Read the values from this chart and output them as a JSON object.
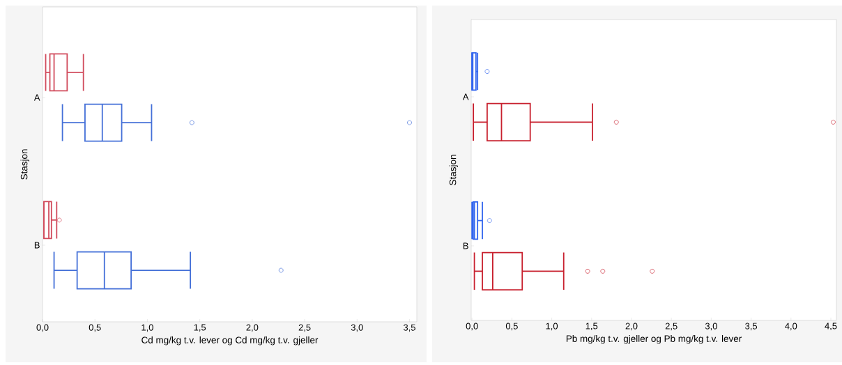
{
  "chart_data": [
    {
      "type": "box",
      "orientation": "horizontal",
      "xlabel": "Cd mg/kg t.v. lever og Cd mg/kg t.v. gjeller",
      "ylabel": "Stasjon",
      "categories": [
        "A",
        "B"
      ],
      "xlim": [
        0,
        3.57
      ],
      "xticks": [
        {
          "value": 0,
          "label": "0,0"
        },
        {
          "value": 0.5,
          "label": "0,5"
        },
        {
          "value": 1,
          "label": "1,0"
        },
        {
          "value": 1.5,
          "label": "1,5"
        },
        {
          "value": 2,
          "label": "2,0"
        },
        {
          "value": 2.5,
          "label": "2,5"
        },
        {
          "value": 3,
          "label": "3,0"
        },
        {
          "value": 3.5,
          "label": "3,5"
        }
      ],
      "series": [
        {
          "color": "#d14b5c",
          "boxes": [
            {
              "low": 0.03,
              "q1": 0.07,
              "median": 0.11,
              "q3": 0.235,
              "high": 0.39
            },
            {
              "low": 0.013,
              "q1": 0.013,
              "median": 0.06,
              "q3": 0.085,
              "high": 0.135,
              "outliers": [
                0.16
              ]
            }
          ]
        },
        {
          "color": "#4470d8",
          "boxes": [
            {
              "low": 0.19,
              "q1": 0.405,
              "median": 0.57,
              "q3": 0.755,
              "high": 1.04,
              "outliers": [
                1.425,
                3.5
              ]
            },
            {
              "low": 0.11,
              "q1": 0.33,
              "median": 0.59,
              "q3": 0.845,
              "high": 1.41,
              "outliers": [
                2.275
              ]
            }
          ]
        }
      ]
    },
    {
      "type": "box",
      "orientation": "horizontal",
      "xlabel": "Pb mg/kg t.v. gjeller og Pb mg/kg t.v. lever",
      "ylabel": "Stasjon",
      "categories": [
        "A",
        "B"
      ],
      "xlim": [
        -0.01,
        4.57
      ],
      "xticks": [
        {
          "value": 0,
          "label": "0,0"
        },
        {
          "value": 0.5,
          "label": "0,5"
        },
        {
          "value": 1,
          "label": "1,0"
        },
        {
          "value": 1.5,
          "label": "1,5"
        },
        {
          "value": 2,
          "label": "2,0"
        },
        {
          "value": 2.5,
          "label": "2,5"
        },
        {
          "value": 3,
          "label": "3,0"
        },
        {
          "value": 3.5,
          "label": "3,5"
        },
        {
          "value": 4,
          "label": "4,0"
        },
        {
          "value": 4.5,
          "label": "4,5"
        }
      ],
      "series": [
        {
          "color": "#3366ee",
          "boxes": [
            {
              "low": 0,
              "q1": 0,
              "median": 0.01,
              "q3": 0.05,
              "high": 0.07,
              "outliers": [
                0.19
              ]
            },
            {
              "low": 0,
              "q1": 0.015,
              "median": 0.03,
              "q3": 0.07,
              "high": 0.13,
              "outliers": [
                0.22
              ]
            }
          ]
        },
        {
          "color": "#c8202e",
          "boxes": [
            {
              "low": 0.017,
              "q1": 0.19,
              "median": 0.37,
              "q3": 0.73,
              "high": 1.51,
              "outliers": [
                1.81,
                4.53
              ]
            },
            {
              "low": 0.03,
              "q1": 0.13,
              "median": 0.26,
              "q3": 0.63,
              "high": 1.15,
              "outliers": [
                1.45,
                1.64,
                2.26
              ]
            }
          ]
        }
      ]
    }
  ]
}
